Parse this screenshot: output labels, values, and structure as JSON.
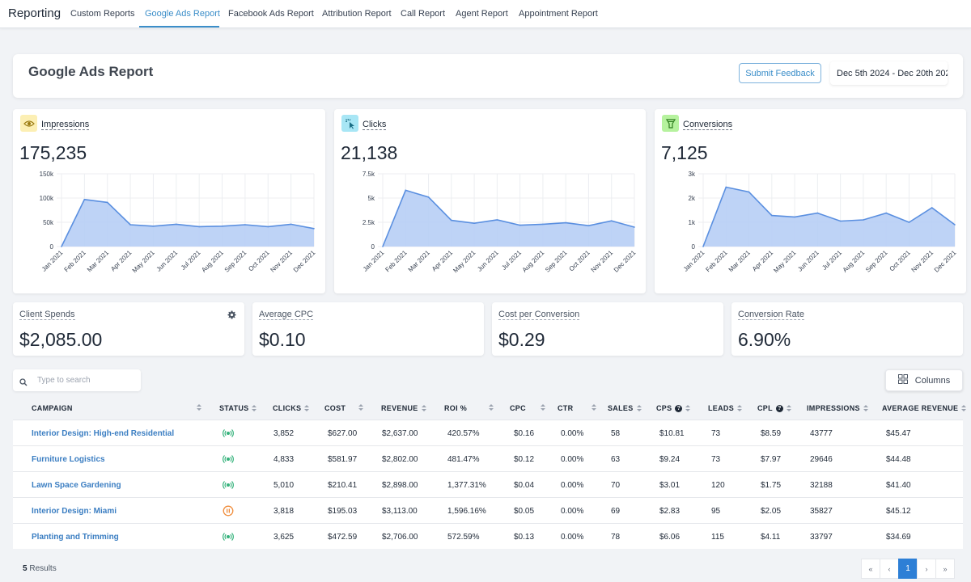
{
  "nav": {
    "brand": "Reporting",
    "tabs": [
      {
        "label": "Custom Reports"
      },
      {
        "label": "Google Ads Report"
      },
      {
        "label": "Facebook Ads Report"
      },
      {
        "label": "Attribution Report"
      },
      {
        "label": "Call Report"
      },
      {
        "label": "Agent Report"
      },
      {
        "label": "Appointment Report"
      }
    ],
    "active_tab": "Google Ads Report",
    "accent": "#3b8ec9"
  },
  "header": {
    "title": "Google Ads Report",
    "feedback_label": "Submit Feedback",
    "date_range": "Dec 5th 2024 - Dec 20th 202"
  },
  "metrics": [
    {
      "label": "Impressions",
      "value": "175,235",
      "icon": "eye-icon",
      "icon_bg": "#fcefb4",
      "icon_color": "#b8860b"
    },
    {
      "label": "Clicks",
      "value": "21,138",
      "icon": "cursor-click-icon",
      "icon_bg": "#a8e6f5",
      "icon_color": "#1a6d85"
    },
    {
      "label": "Conversions",
      "value": "7,125",
      "icon": "funnel-icon",
      "icon_bg": "#b6f29e",
      "icon_color": "#2e7d1e"
    }
  ],
  "chart_data": [
    {
      "type": "area",
      "x": [
        "Jan 2021",
        "Feb 2021",
        "Mar 2021",
        "Apr 2021",
        "May 2021",
        "Jun 2021",
        "Jul 2021",
        "Aug 2021",
        "Sep 2021",
        "Oct 2021",
        "Nov 2021",
        "Dec 2021"
      ],
      "values": [
        0,
        97000,
        91000,
        45000,
        42000,
        46000,
        41000,
        42000,
        45000,
        41000,
        46000,
        37000
      ],
      "ylim": [
        0,
        150000
      ],
      "yticks": [
        "0",
        "50k",
        "100k",
        "150k"
      ],
      "grid": true,
      "color": "#5a8fe0",
      "fill": "#b7cef5"
    },
    {
      "type": "area",
      "x": [
        "Jan 2021",
        "Feb 2021",
        "Mar 2021",
        "Apr 2021",
        "May 2021",
        "Jun 2021",
        "Jul 2021",
        "Aug 2021",
        "Sep 2021",
        "Oct 2021",
        "Nov 2021",
        "Dec 2021"
      ],
      "values": [
        0,
        5800,
        5100,
        2700,
        2400,
        2750,
        2200,
        2300,
        2450,
        2150,
        2650,
        2000
      ],
      "ylim": [
        0,
        7500
      ],
      "yticks": [
        "0",
        "2.5k",
        "5k",
        "7.5k"
      ],
      "grid": true,
      "color": "#5a8fe0",
      "fill": "#b7cef5"
    },
    {
      "type": "area",
      "x": [
        "Jan 2021",
        "Feb 2021",
        "Mar 2021",
        "Apr 2021",
        "May 2021",
        "Jun 2021",
        "Jul 2021",
        "Aug 2021",
        "Sep 2021",
        "Oct 2021",
        "Nov 2021",
        "Dec 2021"
      ],
      "values": [
        0,
        2450,
        2250,
        1280,
        1220,
        1380,
        1050,
        1100,
        1380,
        1000,
        1600,
        900
      ],
      "ylim": [
        0,
        3000
      ],
      "yticks": [
        "0",
        "1k",
        "2k",
        "3k"
      ],
      "grid": true,
      "color": "#5a8fe0",
      "fill": "#b7cef5"
    }
  ],
  "stats": [
    {
      "label": "Client Spends",
      "value": "$2,085.00"
    },
    {
      "label": "Average CPC",
      "value": "$0.10"
    },
    {
      "label": "Cost per Conversion",
      "value": "$0.29"
    },
    {
      "label": "Conversion Rate",
      "value": "6.90%"
    }
  ],
  "search": {
    "placeholder": "Type to search"
  },
  "columns_button": "Columns",
  "table": {
    "headers": [
      "CAMPAIGN",
      "STATUS",
      "CLICKS",
      "COST",
      "REVENUE",
      "ROI %",
      "CPC",
      "CTR",
      "SALES",
      "CPS",
      "LEADS",
      "CPL",
      "IMPRESSIONS",
      "AVERAGE REVENUE"
    ],
    "rows": [
      {
        "campaign": "Interior Design: High-end Residential",
        "status": "active",
        "clicks": "3,852",
        "cost": "$627.00",
        "revenue": "$2,637.00",
        "roi": "420.57%",
        "cpc": "$0.16",
        "ctr": "0.00%",
        "sales": "58",
        "cps": "$10.81",
        "leads": "73",
        "cpl": "$8.59",
        "impressions": "43777",
        "avg_revenue": "$45.47"
      },
      {
        "campaign": "Furniture Logistics",
        "status": "active",
        "clicks": "4,833",
        "cost": "$581.97",
        "revenue": "$2,802.00",
        "roi": "481.47%",
        "cpc": "$0.12",
        "ctr": "0.00%",
        "sales": "63",
        "cps": "$9.24",
        "leads": "73",
        "cpl": "$7.97",
        "impressions": "29646",
        "avg_revenue": "$44.48"
      },
      {
        "campaign": "Lawn Space Gardening",
        "status": "active",
        "clicks": "5,010",
        "cost": "$210.41",
        "revenue": "$2,898.00",
        "roi": "1,377.31%",
        "cpc": "$0.04",
        "ctr": "0.00%",
        "sales": "70",
        "cps": "$3.01",
        "leads": "120",
        "cpl": "$1.75",
        "impressions": "32188",
        "avg_revenue": "$41.40"
      },
      {
        "campaign": "Interior Design: Miami",
        "status": "paused",
        "clicks": "3,818",
        "cost": "$195.03",
        "revenue": "$3,113.00",
        "roi": "1,596.16%",
        "cpc": "$0.05",
        "ctr": "0.00%",
        "sales": "69",
        "cps": "$2.83",
        "leads": "95",
        "cpl": "$2.05",
        "impressions": "35827",
        "avg_revenue": "$45.12"
      },
      {
        "campaign": "Planting and Trimming",
        "status": "active",
        "clicks": "3,625",
        "cost": "$472.59",
        "revenue": "$2,706.00",
        "roi": "572.59%",
        "cpc": "$0.13",
        "ctr": "0.00%",
        "sales": "78",
        "cps": "$6.06",
        "leads": "115",
        "cpl": "$4.11",
        "impressions": "33797",
        "avg_revenue": "$34.69"
      }
    ]
  },
  "footer": {
    "results_count": "5",
    "results_label": "Results",
    "pager": [
      "«",
      "‹",
      "1",
      "›",
      "»"
    ],
    "current_page": "1"
  },
  "colors": {
    "link": "#3b7ec2",
    "status_active": "#34b27b",
    "status_paused": "#f08c3a",
    "page_active": "#2d7fd6"
  }
}
